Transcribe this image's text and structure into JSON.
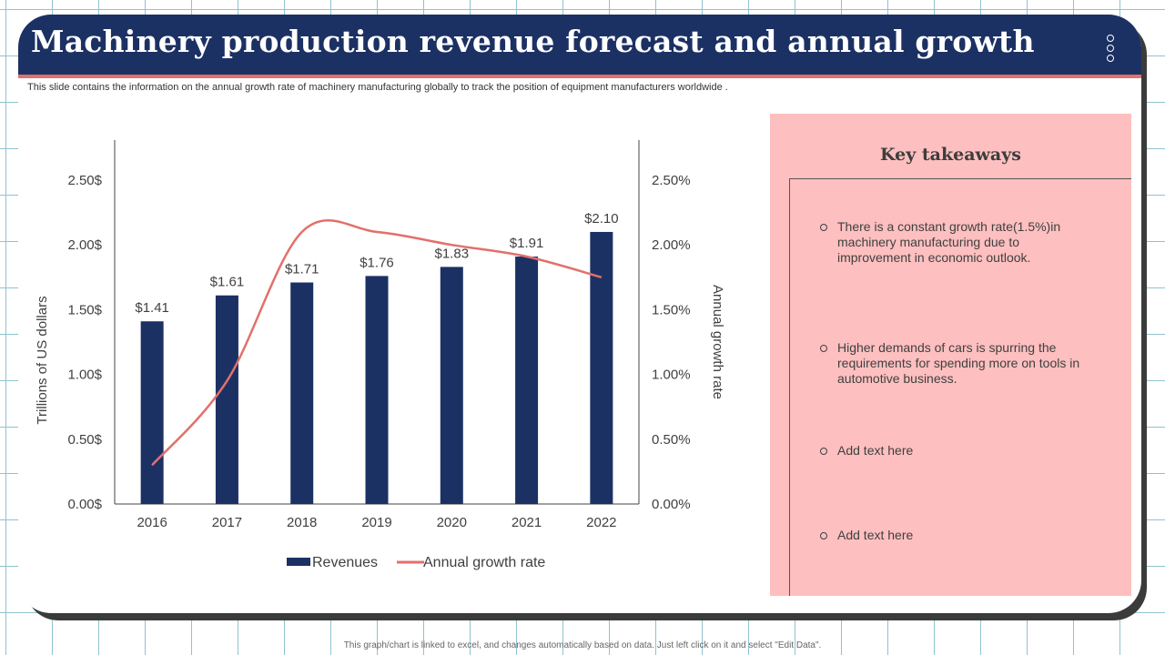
{
  "slide": {
    "title": "Machinery production revenue forecast and annual growth",
    "subtitle": "This slide contains the information on the annual growth rate of machinery manufacturing globally to track the position of equipment manufacturers worldwide .",
    "footer": "This graph/chart is linked to excel, and changes automatically based on data. Just left click on it and select \"Edit Data\"."
  },
  "takeaways": {
    "title": "Key takeaways",
    "items": [
      "There is a constant growth rate(1.5%)in machinery manufacturing due to improvement in economic outlook.",
      "Higher demands of cars is spurring the requirements for spending more on tools in automotive business.",
      "Add text here",
      "Add text here"
    ]
  },
  "colors": {
    "header": "#1c3163",
    "accent": "#e2706c",
    "bar": "#1c3163",
    "panel": "#fdbfbf"
  },
  "chart_data": {
    "type": "bar",
    "categories": [
      "2016",
      "2017",
      "2018",
      "2019",
      "2020",
      "2021",
      "2022"
    ],
    "series": [
      {
        "name": "Revenues",
        "type": "bar",
        "axis": "left",
        "values": [
          1.41,
          1.61,
          1.71,
          1.76,
          1.83,
          1.91,
          2.1
        ],
        "labels": [
          "$1.41",
          "$1.61",
          "$1.71",
          "$1.76",
          "$1.83",
          "$1.91",
          "$2.10"
        ]
      },
      {
        "name": "Annual growth rate",
        "type": "line",
        "axis": "right",
        "smooth": true,
        "values": [
          0.3,
          0.95,
          2.1,
          2.1,
          2.0,
          1.91,
          1.75
        ]
      }
    ],
    "ylabel": "Trillions of US dollars",
    "y2label": "Annual growth rate",
    "ylim": [
      0,
      2.5
    ],
    "y2lim": [
      0,
      2.5
    ],
    "yticks": [
      "0.00$",
      "0.50$",
      "1.00$",
      "1.50$",
      "2.00$",
      "2.50$"
    ],
    "y2ticks": [
      "0.00%",
      "0.50%",
      "1.00%",
      "1.50%",
      "2.00%",
      "2.50%"
    ],
    "grid": false,
    "legend": "bottom"
  }
}
